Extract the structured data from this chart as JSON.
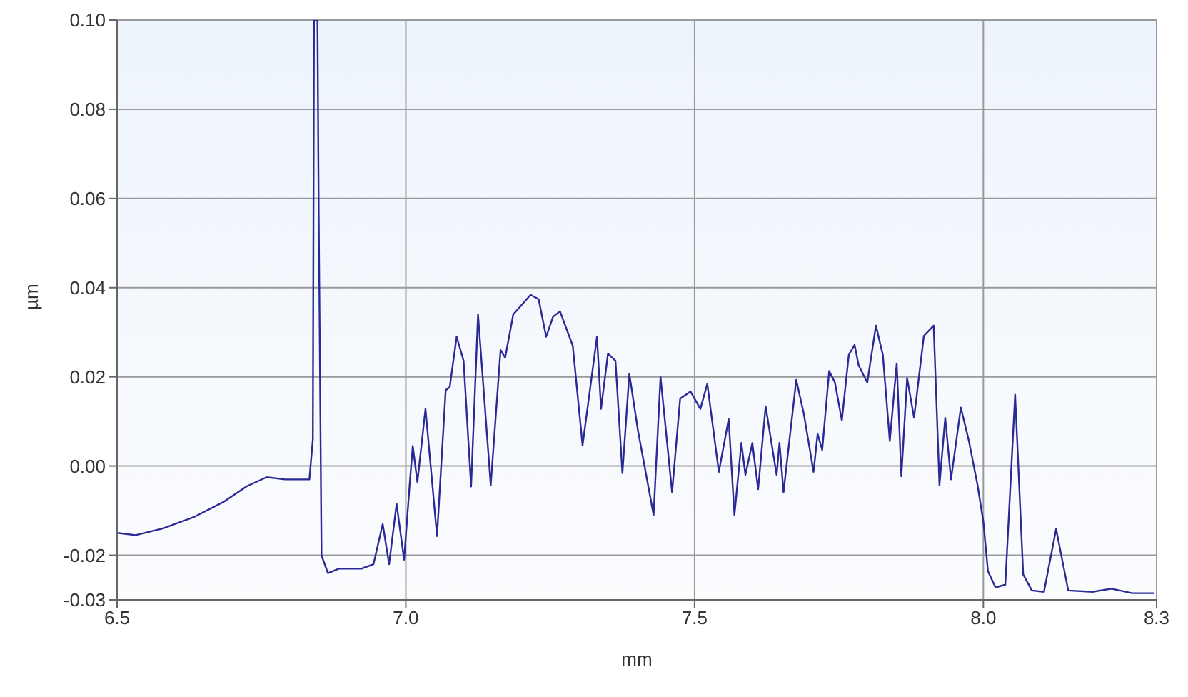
{
  "chart_data": {
    "type": "line",
    "xlabel": "mm",
    "ylabel": "µm",
    "x": [
      6.5,
      6.532,
      6.579,
      6.632,
      6.685,
      6.725,
      6.759,
      6.791,
      6.833,
      6.839,
      6.841,
      6.847,
      6.849,
      6.854,
      6.865,
      6.884,
      6.923,
      6.944,
      6.96,
      6.971,
      6.984,
      6.997,
      7.007,
      7.012,
      7.02,
      7.034,
      7.054,
      7.069,
      7.076,
      7.088,
      7.1,
      7.113,
      7.125,
      7.147,
      7.164,
      7.172,
      7.186,
      7.216,
      7.23,
      7.243,
      7.255,
      7.267,
      7.289,
      7.306,
      7.331,
      7.338,
      7.35,
      7.363,
      7.375,
      7.387,
      7.402,
      7.429,
      7.441,
      7.461,
      7.475,
      7.493,
      7.51,
      7.522,
      7.542,
      7.559,
      7.569,
      7.581,
      7.588,
      7.6,
      7.61,
      7.623,
      7.642,
      7.647,
      7.654,
      7.676,
      7.689,
      7.706,
      7.713,
      7.721,
      7.733,
      7.743,
      7.755,
      7.767,
      7.777,
      7.784,
      7.799,
      7.814,
      7.826,
      7.838,
      7.85,
      7.858,
      7.868,
      7.88,
      7.897,
      7.914,
      7.924,
      7.934,
      7.944,
      7.961,
      7.975,
      7.99,
      8.0,
      8.008,
      8.021,
      8.038,
      8.055,
      8.069,
      8.084,
      8.105,
      8.126,
      8.147,
      8.189,
      8.222,
      8.258,
      8.296
    ],
    "series": [
      {
        "color": "#2a2a96",
        "values": [
          -0.015,
          -0.0155,
          -0.014,
          -0.0115,
          -0.008,
          -0.0045,
          -0.0025,
          -0.003,
          -0.003,
          0.006,
          0.1,
          0.1,
          0.059,
          -0.02,
          -0.024,
          -0.023,
          -0.023,
          -0.022,
          -0.013,
          -0.022,
          -0.0085,
          -0.021,
          -0.0035,
          0.0045,
          -0.0036,
          0.0128,
          -0.0157,
          0.017,
          0.0177,
          0.029,
          0.0236,
          -0.0046,
          0.034,
          -0.0043,
          0.026,
          0.0243,
          0.034,
          0.0384,
          0.0374,
          0.029,
          0.0335,
          0.0347,
          0.027,
          0.0046,
          0.029,
          0.0128,
          0.0252,
          0.0236,
          -0.0016,
          0.0207,
          0.0079,
          -0.011,
          0.02,
          -0.0059,
          0.0151,
          0.0167,
          0.0128,
          0.0184,
          -0.0013,
          0.0105,
          -0.011,
          0.0052,
          -0.002,
          0.0052,
          -0.0052,
          0.0134,
          -0.002,
          0.0052,
          -0.0059,
          0.0193,
          0.0118,
          -0.0013,
          0.0072,
          0.0036,
          0.0213,
          0.0187,
          0.0102,
          0.0249,
          0.0272,
          0.0226,
          0.0187,
          0.0315,
          0.0249,
          0.0056,
          0.023,
          -0.0023,
          0.0197,
          0.0108,
          0.0292,
          0.0315,
          -0.0043,
          0.0108,
          -0.003,
          0.0131,
          0.0056,
          -0.0043,
          -0.0125,
          -0.0236,
          -0.0272,
          -0.0266,
          0.016,
          -0.0243,
          -0.0279,
          -0.0282,
          -0.0141,
          -0.0279,
          -0.0282,
          -0.0275,
          -0.0285,
          -0.0285
        ]
      }
    ],
    "xlim": [
      6.5,
      8.3
    ],
    "xticks": [
      6.5,
      {
        "value": 7,
        "label": "7.0"
      },
      7.5,
      {
        "value": 8,
        "label": "8.0"
      },
      8.3
    ],
    "ylim": [
      -0.03,
      0.1
    ],
    "yticks": [
      {
        "value": 0.1,
        "label": "0.10"
      },
      0.08,
      0.06,
      0.04,
      0.02,
      {
        "value": 0,
        "label": "0.00"
      },
      -0.02,
      -0.03
    ],
    "grid": true,
    "legend": false,
    "marker": "none",
    "line_style": "solid"
  }
}
